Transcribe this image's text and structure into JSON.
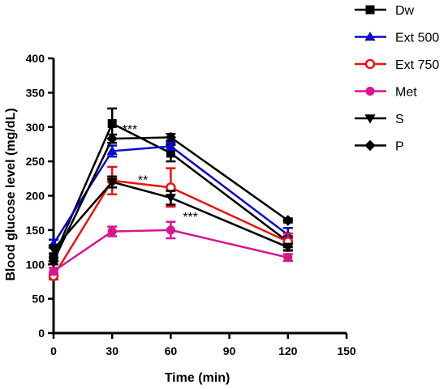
{
  "chart_data": {
    "type": "line",
    "xlabel": "Time  (min)",
    "ylabel": "Blood glucose level  (mg/dL)",
    "xlim": [
      0,
      150
    ],
    "ylim": [
      0,
      400
    ],
    "xticks": [
      "0",
      "30",
      "60",
      "90",
      "120",
      "150"
    ],
    "yticks": [
      "0",
      "50",
      "100",
      "150",
      "200",
      "250",
      "300",
      "350",
      "400"
    ],
    "x": [
      0,
      30,
      60,
      120
    ],
    "grid": false,
    "legend_position": "top-right",
    "series": [
      {
        "name": "Dw",
        "color": "#000000",
        "marker": "square",
        "filled": true,
        "values": [
          110,
          305,
          262,
          133
        ],
        "errors": [
          6,
          22,
          12,
          8
        ]
      },
      {
        "name": "Ext 500",
        "color": "#0a0ad0",
        "marker": "triangle-up",
        "filled": true,
        "values": [
          130,
          265,
          272,
          143
        ],
        "errors": [
          6,
          8,
          5,
          10
        ]
      },
      {
        "name": "Ext 750",
        "color": "#ee1111",
        "marker": "circle",
        "filled": false,
        "values": [
          83,
          222,
          212,
          133
        ],
        "errors": [
          5,
          20,
          28,
          12
        ]
      },
      {
        "name": "Met",
        "color": "#d6178f",
        "marker": "circle",
        "filled": true,
        "values": [
          90,
          148,
          150,
          110
        ],
        "errors": [
          5,
          7,
          12,
          5
        ]
      },
      {
        "name": "S",
        "color": "#000000",
        "marker": "triangle-down",
        "filled": true,
        "values": [
          122,
          220,
          197,
          125
        ],
        "errors": [
          6,
          8,
          10,
          5
        ]
      },
      {
        "name": "P",
        "color": "#000000",
        "marker": "diamond",
        "filled": true,
        "values": [
          105,
          283,
          285,
          164
        ],
        "errors": [
          5,
          6,
          5,
          3
        ]
      }
    ],
    "annotations": [
      {
        "text": "***",
        "x": 31,
        "y": 300
      },
      {
        "text": "**",
        "x": 39,
        "y": 226
      },
      {
        "text": "***",
        "x": 62,
        "y": 172
      }
    ]
  }
}
